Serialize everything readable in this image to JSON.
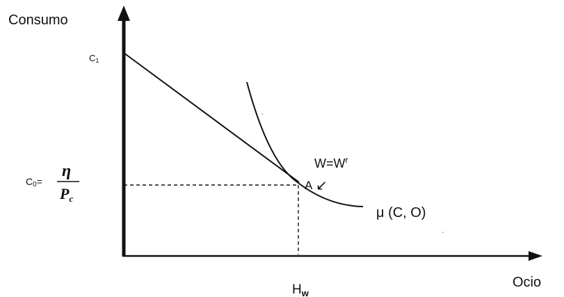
{
  "diagram": {
    "y_axis_label": "Consumo",
    "x_axis_label": "Ocio",
    "c1_label": "C",
    "c1_sub": "1",
    "c0_label": "C",
    "c0_sub": "0",
    "c0_equals": "=",
    "c0_numerator": "η",
    "c0_denominator": "P",
    "c0_denominator_sub": "c",
    "wage_label": "W=W",
    "wage_sup": "r",
    "point_label": "A",
    "arrow_glyph": "↙",
    "utility_label": "μ (C, O)",
    "hw_label": "H",
    "hw_sub": "w"
  },
  "colors": {
    "ink": "#111111",
    "background": "#ffffff"
  }
}
